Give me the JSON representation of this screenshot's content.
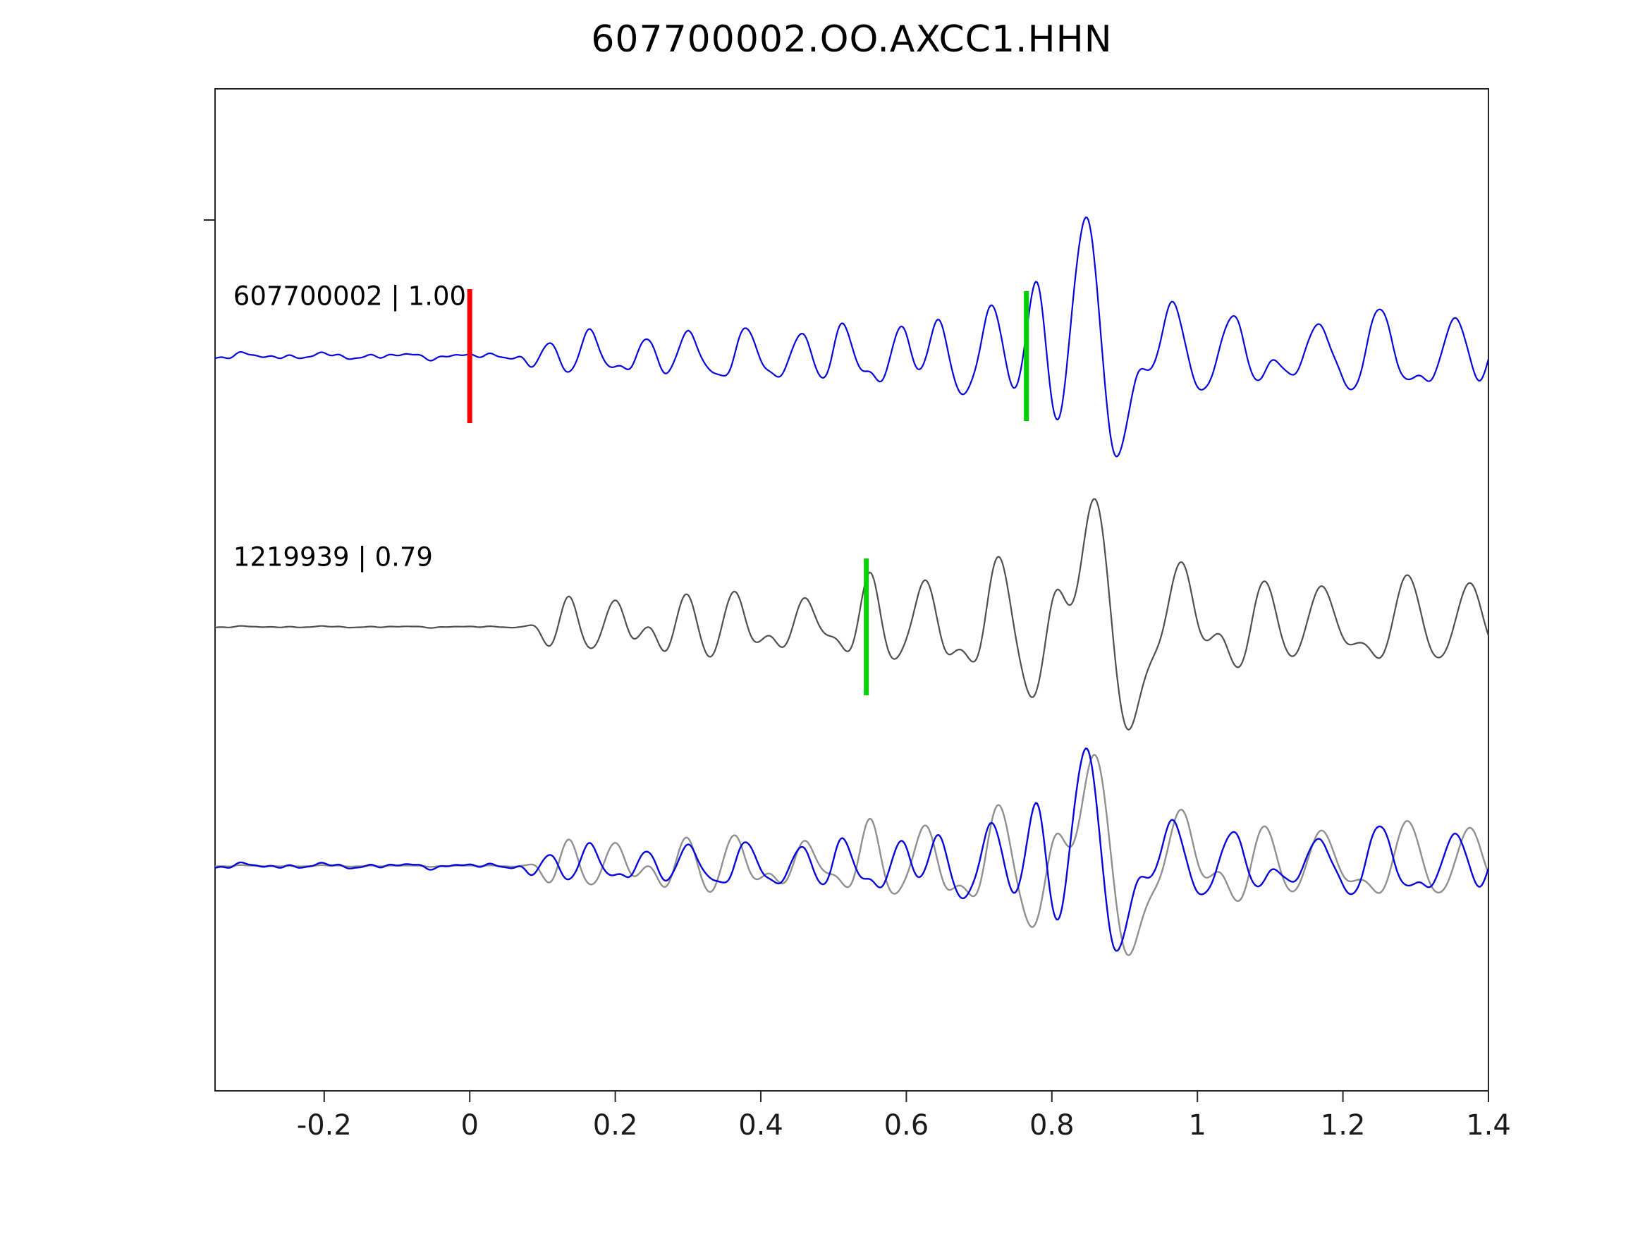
{
  "title": "607700002.OO.AXCC1.HHN",
  "traces_meta": [
    {
      "id": "607700002",
      "correlation": "1.00",
      "color": "#0505dc",
      "role": "template"
    },
    {
      "id": "1219939",
      "correlation": "0.79",
      "color": "#4f4f4f",
      "role": "detection"
    }
  ],
  "chart_data": {
    "type": "line",
    "title": "607700002.OO.AXCC1.HHN",
    "xlabel": "",
    "ylabel": "",
    "grid": false,
    "legend": null,
    "xlim": [
      -0.35,
      1.4
    ],
    "x_ticks": [
      -0.2,
      0,
      0.2,
      0.4,
      0.6,
      0.8,
      1,
      1.2,
      1.4
    ],
    "x_tick_labels": [
      "-0.2",
      "0",
      "0.2",
      "0.4",
      "0.6",
      "0.8",
      "1",
      "1.2",
      "1.4"
    ],
    "labels": [
      {
        "text": "607700002 | 1.00",
        "x": -0.325,
        "row": 0,
        "dy": -85
      },
      {
        "text": "1219939 | 0.79",
        "x": -0.325,
        "row": 1,
        "dy": -99
      }
    ],
    "markers": [
      {
        "x": 0.0,
        "row": 0,
        "half": 95,
        "width": 7,
        "color": "#ff0000",
        "name": "pick-marker-red"
      },
      {
        "x": 0.765,
        "row": 0,
        "half": 92,
        "width": 7,
        "color": "#00cf00",
        "name": "align-marker-green-top"
      },
      {
        "x": 0.545,
        "row": 1,
        "half": 97,
        "width": 7,
        "color": "#00cf00",
        "name": "align-marker-green-middle"
      }
    ],
    "waveforms": [
      {
        "id": "607700002-template",
        "onset": 0.045,
        "noise": 0.012,
        "packets": [
          [
            0.1,
            0.03,
            17,
            0.1,
            0.0
          ],
          [
            0.165,
            0.04,
            15,
            0.2,
            1.6
          ],
          [
            0.235,
            0.04,
            16,
            0.14,
            0.4
          ],
          [
            0.305,
            0.045,
            15,
            0.18,
            2.3
          ],
          [
            0.375,
            0.045,
            16,
            0.2,
            1.1
          ],
          [
            0.445,
            0.04,
            15,
            0.18,
            0.2
          ],
          [
            0.515,
            0.04,
            16,
            0.22,
            1.9
          ],
          [
            0.585,
            0.04,
            15,
            0.26,
            0.6
          ],
          [
            0.65,
            0.038,
            14,
            0.28,
            2.4
          ],
          [
            0.715,
            0.035,
            13,
            0.34,
            1.3
          ],
          [
            0.78,
            0.03,
            12,
            0.62,
            1.5708
          ],
          [
            0.86,
            0.058,
            10,
            1.05,
            2.51
          ],
          [
            0.96,
            0.045,
            13,
            0.38,
            0.9
          ],
          [
            1.055,
            0.05,
            13,
            0.3,
            2.1
          ],
          [
            1.15,
            0.05,
            12,
            0.24,
            0.3
          ],
          [
            1.25,
            0.05,
            12,
            0.33,
            1.5
          ],
          [
            1.345,
            0.045,
            12,
            0.28,
            0.7
          ],
          [
            1.42,
            0.04,
            12,
            0.22,
            1.8
          ]
        ]
      },
      {
        "id": "1219939-detection",
        "onset": 0.06,
        "noise": 0.003,
        "packets": [
          [
            0.13,
            0.035,
            16,
            0.22,
            0.9
          ],
          [
            0.205,
            0.042,
            15,
            0.2,
            2.1
          ],
          [
            0.285,
            0.045,
            15,
            0.24,
            0.3
          ],
          [
            0.365,
            0.045,
            14,
            0.26,
            1.7
          ],
          [
            0.45,
            0.042,
            14,
            0.24,
            0.5
          ],
          [
            0.55,
            0.038,
            14,
            0.4,
            1.5708
          ],
          [
            0.635,
            0.038,
            13,
            0.36,
            2.4
          ],
          [
            0.72,
            0.04,
            12,
            0.52,
            1.0
          ],
          [
            0.795,
            0.035,
            11,
            0.68,
            0.3
          ],
          [
            0.875,
            0.06,
            9,
            1.08,
            2.7
          ],
          [
            0.975,
            0.045,
            12,
            0.46,
            1.2
          ],
          [
            1.075,
            0.05,
            12,
            0.38,
            0.1
          ],
          [
            1.175,
            0.05,
            11,
            0.3,
            1.9
          ],
          [
            1.28,
            0.05,
            11,
            0.4,
            0.9
          ],
          [
            1.38,
            0.045,
            11,
            0.32,
            2.0
          ]
        ]
      }
    ],
    "plotted": [
      {
        "waveform": 0,
        "row": 0,
        "color": "#0505dc",
        "width": 2.2,
        "amp": 195,
        "name": "trace-template-top"
      },
      {
        "waveform": 1,
        "row": 1,
        "color": "#4f4f4f",
        "width": 2.2,
        "amp": 190,
        "name": "trace-detection-middle"
      },
      {
        "waveform": 1,
        "row": 2,
        "color": "#8f8f8f",
        "width": 2.4,
        "amp": 165,
        "name": "trace-overlay-detection"
      },
      {
        "waveform": 0,
        "row": 2,
        "color": "#0505dc",
        "width": 2.4,
        "amp": 165,
        "name": "trace-overlay-template"
      }
    ],
    "colors": {
      "template_blue": "#0505dc",
      "detection_gray": "#4f4f4f",
      "overlay_gray": "#8f8f8f",
      "pick_red": "#ff0000",
      "align_green": "#00cf00",
      "axis": "#262626"
    }
  }
}
